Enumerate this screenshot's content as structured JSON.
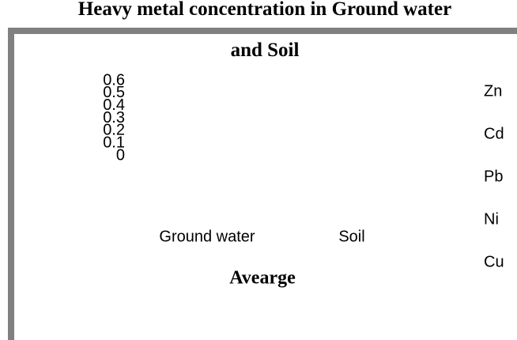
{
  "chart_data": {
    "type": "bar",
    "title": "Heavy metal concentration in Ground water and Soil",
    "categories": [
      "Ground water",
      "Soil"
    ],
    "series": [
      {
        "name": "Zn",
        "values": [
          null,
          null
        ]
      },
      {
        "name": "Cd",
        "values": [
          null,
          null
        ]
      },
      {
        "name": "Pb",
        "values": [
          null,
          null
        ]
      },
      {
        "name": "Ni",
        "values": [
          null,
          null
        ]
      },
      {
        "name": "Cu",
        "values": [
          null,
          null
        ]
      }
    ],
    "x_label": "Avearge",
    "ylim": [
      0,
      0.6
    ],
    "yticks": [
      0,
      0.1,
      0.2,
      0.3,
      0.4,
      0.5,
      0.6
    ]
  }
}
